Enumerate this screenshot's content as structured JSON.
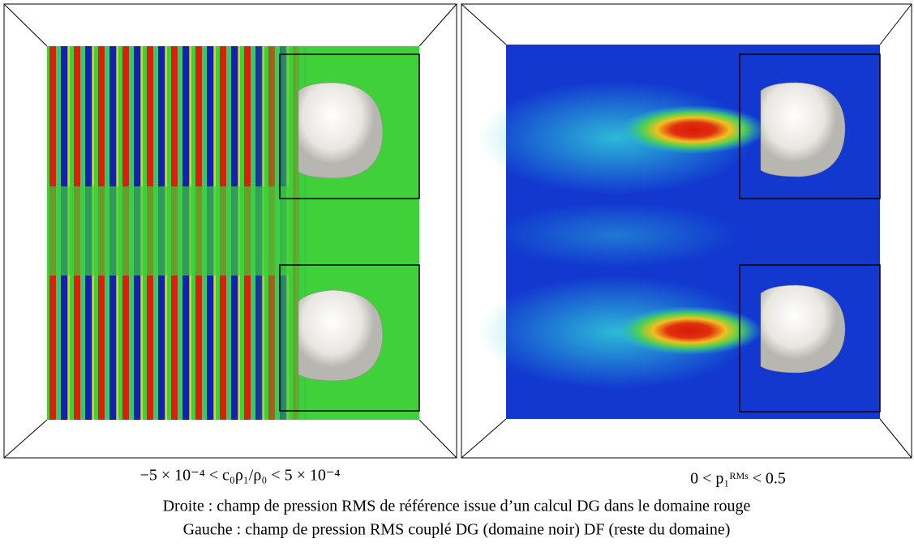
{
  "panels": {
    "left": {
      "range_label": "−5 × 10⁻⁴ < c₀ρ₁/ρ₀ < 5 × 10⁻⁴"
    },
    "right": {
      "range_label": "0 < p₁ᴿᴹˢ < 0.5"
    }
  },
  "caption": {
    "lines": [
      "Droite : champ de pression RMS de référence issue d’un calcul DG dans le domaine rouge",
      "Gauche : champ de pression RMS couplé DG (domaine noir) DF (reste du domaine)"
    ]
  }
}
